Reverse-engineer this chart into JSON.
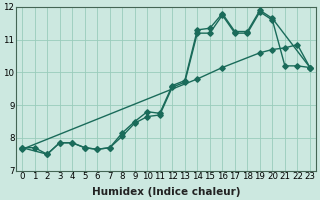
{
  "xlabel": "Humidex (Indice chaleur)",
  "xlim": [
    -0.5,
    23.5
  ],
  "ylim": [
    7,
    12
  ],
  "xticks": [
    0,
    1,
    2,
    3,
    4,
    5,
    6,
    7,
    8,
    9,
    10,
    11,
    12,
    13,
    14,
    15,
    16,
    17,
    18,
    19,
    20,
    21,
    22,
    23
  ],
  "yticks": [
    7,
    8,
    9,
    10,
    11,
    12
  ],
  "bg_color": "#cce8e0",
  "grid_color": "#99ccbb",
  "line_color": "#1a6b5a",
  "line1_x": [
    0,
    1,
    2,
    3,
    4,
    5,
    6,
    7,
    8,
    9,
    10,
    11,
    12,
    13,
    14,
    15,
    16,
    17,
    18,
    19,
    20,
    21,
    22,
    23
  ],
  "line1_y": [
    7.7,
    7.7,
    7.5,
    7.85,
    7.85,
    7.7,
    7.65,
    7.7,
    8.05,
    8.45,
    8.65,
    8.7,
    9.55,
    9.7,
    11.2,
    11.2,
    11.75,
    11.2,
    11.2,
    11.85,
    11.6,
    10.2,
    10.2,
    10.15
  ],
  "line2_x": [
    0,
    2,
    3,
    4,
    5,
    6,
    7,
    8,
    9,
    10,
    11,
    12,
    13,
    14,
    15,
    16,
    17,
    18,
    19,
    20,
    23
  ],
  "line2_y": [
    7.7,
    7.5,
    7.85,
    7.85,
    7.7,
    7.65,
    7.7,
    8.15,
    8.5,
    8.8,
    8.75,
    9.6,
    9.75,
    11.3,
    11.35,
    11.8,
    11.25,
    11.25,
    11.9,
    11.65,
    10.15
  ],
  "line3_x": [
    0,
    14,
    16,
    19,
    20,
    21,
    22,
    23
  ],
  "line3_y": [
    7.65,
    9.8,
    10.15,
    10.6,
    10.7,
    10.75,
    10.85,
    10.15
  ],
  "marker_size": 2.8,
  "linewidth": 1.0,
  "tick_fontsize": 6.2,
  "xlabel_fontsize": 7.5
}
